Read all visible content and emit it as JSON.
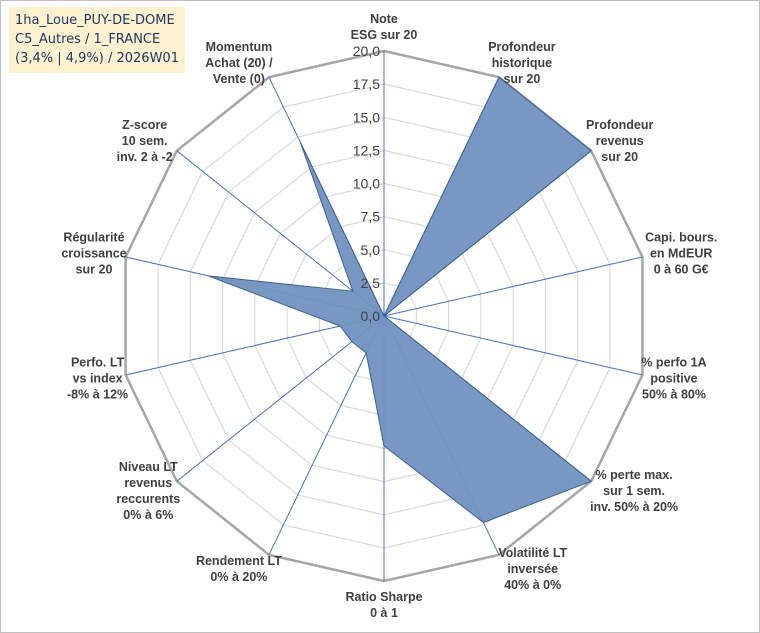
{
  "title_lines": [
    "1ha_Loue_PUY-DE-DOME",
    "C5_Autres / 1_FRANCE",
    "(3,4% | 4,9%) / 2026W01"
  ],
  "chart_data": {
    "type": "radar",
    "rmin": 0,
    "rmax": 20,
    "tick_step": 2.5,
    "tick_labels": [
      "0,0",
      "2,5",
      "5,0",
      "7,5",
      "10,0",
      "12,5",
      "15,0",
      "17,5",
      "20,0"
    ],
    "axes": [
      "Note\nESG sur 20",
      "Profondeur\nhistorique\nsur 20",
      "Profondeur\nrevenus\nsur 20",
      "Capi. bours.\nen MdEUR\n0 à 60 G€",
      "% perfo 1A\npositive\n50% à 80%",
      "% perte max.\nsur 1 sem.\ninv. 50% à 20%",
      "Volatilité LT\ninversée\n40% à 0%",
      "Ratio Sharpe\n0 à 1",
      "Rendement LT\n0% à 20%",
      "Niveau LT\nrevenus\nreccurents\n0% à 6%",
      "Perfo. LT\nvs index\n-8% à 12%",
      "Régularité\ncroissance\nsur 20",
      "Z-score\n10 sem.\ninv. 2 à -2",
      "Momentum\nAchat (20) /\nVente (0)"
    ],
    "series": [
      {
        "values": [
          0,
          20,
          20,
          0,
          0,
          20,
          17.3,
          9.8,
          3.1,
          3.1,
          3.4,
          13.6,
          3.0,
          14.5
        ]
      }
    ],
    "colors": {
      "fill": "#6f92c0",
      "stroke": "#3f5f91",
      "grid": "#d9d9d9",
      "outer_ring": "#a6a6a6",
      "spoke": "#4472c4",
      "text": "#404040"
    }
  }
}
